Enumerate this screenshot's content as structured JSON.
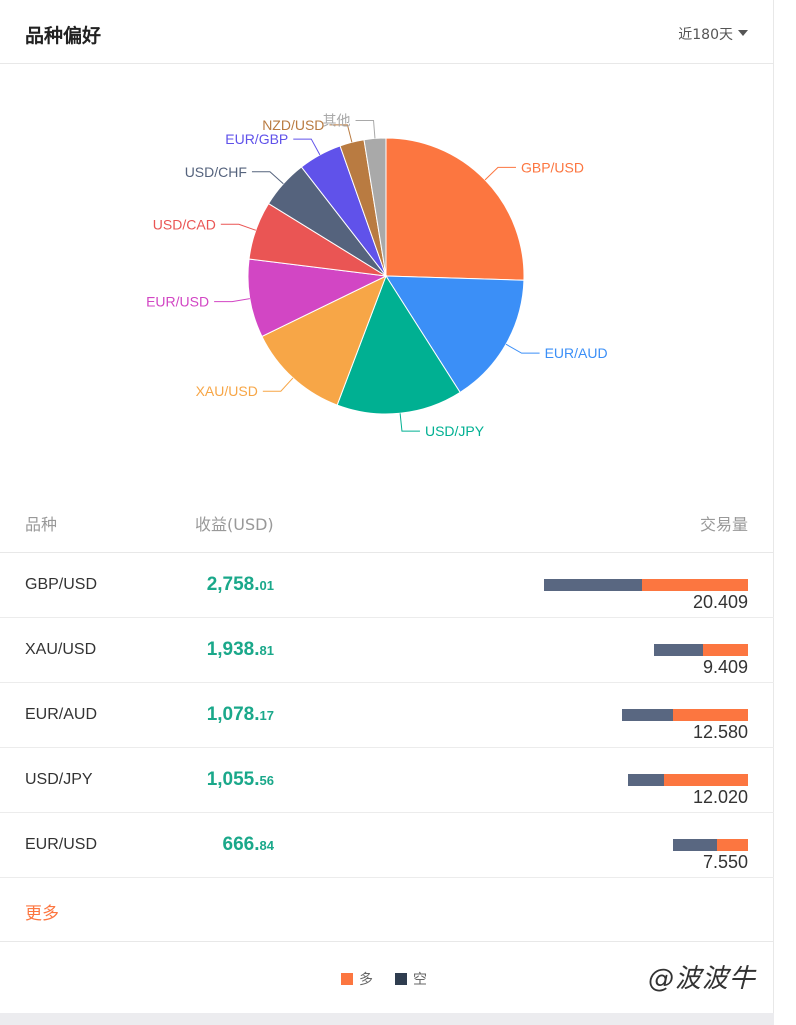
{
  "header": {
    "title": "品种偏好",
    "period": "近180天"
  },
  "colors": {
    "long": "#fc7640",
    "short": "#596781",
    "profit": "#1aa88a",
    "more": "#fc7640"
  },
  "chart_data": {
    "type": "pie",
    "title": "",
    "slices": [
      {
        "label": "GBP/USD",
        "value": 25.0,
        "color": "#fc7640"
      },
      {
        "label": "EUR/AUD",
        "value": 15.2,
        "color": "#3b8ff7"
      },
      {
        "label": "USD/JPY",
        "value": 14.5,
        "color": "#00b092"
      },
      {
        "label": "XAU/USD",
        "value": 11.8,
        "color": "#f7a647"
      },
      {
        "label": "EUR/USD",
        "value": 9.0,
        "color": "#d246c4"
      },
      {
        "label": "USD/CAD",
        "value": 6.7,
        "color": "#ea5554"
      },
      {
        "label": "USD/CHF",
        "value": 5.6,
        "color": "#55637d"
      },
      {
        "label": "EUR/GBP",
        "value": 5.0,
        "color": "#6052ea"
      },
      {
        "label": "NZD/USD",
        "value": 2.8,
        "color": "#b97b41"
      },
      {
        "label": "其他",
        "value": 2.5,
        "color": "#a9a9a9"
      }
    ]
  },
  "table": {
    "headers": {
      "symbol": "品种",
      "profit": "收益(USD)",
      "volume": "交易量"
    },
    "rows": [
      {
        "symbol": "GBP/USD",
        "profit_int": "2,758.",
        "profit_dec": "01",
        "volume": "20.409",
        "short_ratio": 0.48,
        "long_ratio": 0.52,
        "bar_scale": 1.0
      },
      {
        "symbol": "XAU/USD",
        "profit_int": "1,938.",
        "profit_dec": "81",
        "volume": "9.409",
        "short_ratio": 0.52,
        "long_ratio": 0.48,
        "bar_scale": 0.461
      },
      {
        "symbol": "EUR/AUD",
        "profit_int": "1,078.",
        "profit_dec": "17",
        "volume": "12.580",
        "short_ratio": 0.4,
        "long_ratio": 0.6,
        "bar_scale": 0.616
      },
      {
        "symbol": "USD/JPY",
        "profit_int": "1,055.",
        "profit_dec": "56",
        "volume": "12.020",
        "short_ratio": 0.3,
        "long_ratio": 0.7,
        "bar_scale": 0.589
      },
      {
        "symbol": "EUR/USD",
        "profit_int": "666.",
        "profit_dec": "84",
        "volume": "7.550",
        "short_ratio": 0.59,
        "long_ratio": 0.41,
        "bar_scale": 0.37
      }
    ]
  },
  "more_label": "更多",
  "legend": {
    "long_label": "多",
    "short_label": "空"
  },
  "watermark": "@波波牛"
}
